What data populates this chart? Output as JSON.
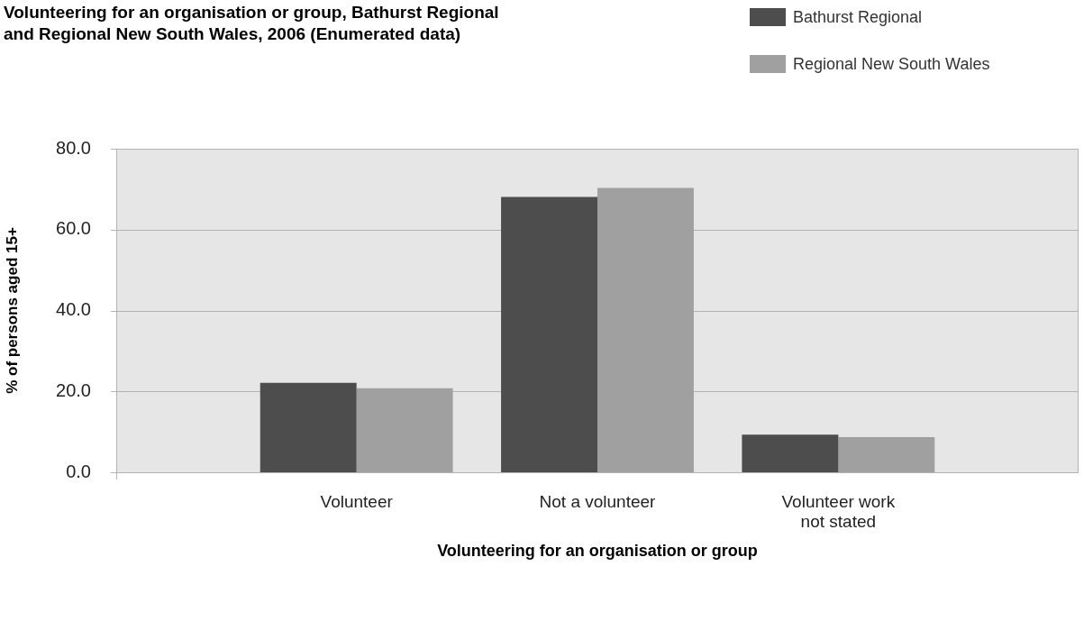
{
  "chart_data": {
    "type": "bar",
    "title": "Volunteering for an organisation or group, Bathurst Regional and Regional New South Wales, 2006 (Enumerated data)",
    "xlabel": "Volunteering for an organisation or group",
    "ylabel": "% of persons aged 15+",
    "categories": [
      "Volunteer",
      "Not a volunteer",
      "Volunteer work not stated"
    ],
    "series": [
      {
        "name": "Bathurst Regional",
        "color": "#4d4d4d",
        "values": [
          22.1,
          68.1,
          9.3
        ]
      },
      {
        "name": "Regional New South Wales",
        "color": "#a0a0a0",
        "values": [
          20.8,
          70.3,
          8.7
        ]
      }
    ],
    "ylim": [
      0,
      80
    ],
    "yticks": [
      {
        "value": 0,
        "label": "0.0"
      },
      {
        "value": 20,
        "label": "20.0"
      },
      {
        "value": 40,
        "label": "40.0"
      },
      {
        "value": 60,
        "label": "60.0"
      },
      {
        "value": 80,
        "label": "80.0"
      }
    ],
    "grid": "y",
    "legend": "top right"
  }
}
